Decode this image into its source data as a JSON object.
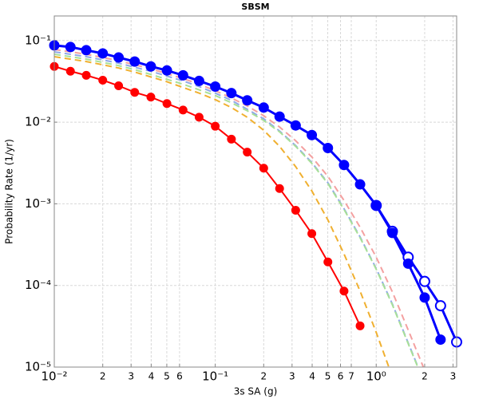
{
  "chart_data": {
    "type": "line",
    "title": "SBSM",
    "xlabel": "3s SA (g)",
    "ylabel": "Probability Rate (1/yr)",
    "xscale": "log",
    "yscale": "log",
    "grid": true,
    "xlim": [
      0.01,
      3.16
    ],
    "ylim": [
      1e-05,
      0.2
    ],
    "xticks": [
      {
        "value": 0.01,
        "label": "10⁻²"
      },
      {
        "value": 0.02,
        "label": "2"
      },
      {
        "value": 0.03,
        "label": "3"
      },
      {
        "value": 0.04,
        "label": "4"
      },
      {
        "value": 0.05,
        "label": "5"
      },
      {
        "value": 0.06,
        "label": "6"
      },
      {
        "value": 0.1,
        "label": "10⁻¹"
      },
      {
        "value": 0.2,
        "label": "2"
      },
      {
        "value": 0.3,
        "label": "3"
      },
      {
        "value": 0.4,
        "label": "4"
      },
      {
        "value": 0.5,
        "label": "5"
      },
      {
        "value": 0.6,
        "label": "6"
      },
      {
        "value": 0.7,
        "label": "7"
      },
      {
        "value": 1,
        "label": "10⁰"
      },
      {
        "value": 2,
        "label": "2"
      },
      {
        "value": 3,
        "label": "3"
      }
    ],
    "yticks": [
      {
        "value": 0.1,
        "label": "10⁻¹"
      },
      {
        "value": 0.01,
        "label": "10⁻²"
      },
      {
        "value": 0.001,
        "label": "10⁻³"
      },
      {
        "value": 0.0001,
        "label": "10⁻⁴"
      },
      {
        "value": 1e-05,
        "label": "10⁻⁵"
      }
    ],
    "series": [
      {
        "color": "#f4a0a0",
        "dashed": true,
        "x": [
          0.01,
          0.0126,
          0.0158,
          0.02,
          0.0251,
          0.0316,
          0.0398,
          0.0501,
          0.0631,
          0.0794,
          0.1,
          0.126,
          0.158,
          0.2,
          0.251,
          0.316,
          0.398,
          0.501,
          0.631,
          0.794,
          1,
          1.26,
          1.58,
          2
        ],
        "values": [
          0.0778,
          0.0727,
          0.0679,
          0.062,
          0.0566,
          0.0505,
          0.045,
          0.0393,
          0.0342,
          0.0292,
          0.0243,
          0.0198,
          0.0158,
          0.012,
          0.00872,
          0.00592,
          0.00375,
          0.00217,
          0.0011,
          0.000516,
          0.000222,
          8.33e-05,
          2.85e-05,
          9.12e-06
        ]
      },
      {
        "color": "#90a8e8",
        "dashed": true,
        "x": [
          0.01,
          0.0126,
          0.0158,
          0.02,
          0.0251,
          0.0316,
          0.0398,
          0.0501,
          0.0631,
          0.0794,
          0.1,
          0.126,
          0.158,
          0.2,
          0.251,
          0.316,
          0.398,
          0.501,
          0.631,
          0.794,
          1,
          1.26,
          1.58,
          2
        ],
        "values": [
          0.0727,
          0.0679,
          0.0634,
          0.0579,
          0.0528,
          0.0471,
          0.042,
          0.0367,
          0.032,
          0.0273,
          0.0227,
          0.0185,
          0.0144,
          0.011,
          0.00778,
          0.00516,
          0.0032,
          0.00181,
          0.000872,
          0.000393,
          0.000161,
          5.92e-05,
          1.98e-05,
          6.34e-06
        ]
      },
      {
        "color": "#a8e098",
        "dashed": true,
        "x": [
          0.01,
          0.0126,
          0.0158,
          0.02,
          0.0251,
          0.0316,
          0.0398,
          0.0501,
          0.0631,
          0.0794,
          0.1,
          0.126,
          0.158,
          0.2,
          0.251,
          0.316,
          0.398,
          0.501,
          0.631,
          0.794,
          1,
          1.26,
          1.58,
          2
        ],
        "values": [
          0.0679,
          0.0634,
          0.0592,
          0.054,
          0.0493,
          0.044,
          0.0384,
          0.0335,
          0.0292,
          0.0249,
          0.0212,
          0.0173,
          0.0138,
          0.0105,
          0.00761,
          0.00505,
          0.00313,
          0.00177,
          0.000852,
          0.000384,
          0.000158,
          5.79e-05,
          1.94e-05,
          6.2e-06
        ]
      },
      {
        "color": "#f0b030",
        "dashed": true,
        "x": [
          0.01,
          0.0126,
          0.0158,
          0.02,
          0.0251,
          0.0316,
          0.0398,
          0.0501,
          0.0631,
          0.0794,
          0.1,
          0.126,
          0.158,
          0.2,
          0.251,
          0.316,
          0.398,
          0.501,
          0.631,
          0.794,
          1,
          1.26
        ],
        "values": [
          0.0634,
          0.0592,
          0.0553,
          0.0505,
          0.0461,
          0.0411,
          0.0358,
          0.0313,
          0.0266,
          0.0227,
          0.0189,
          0.0151,
          0.0115,
          0.00796,
          0.00505,
          0.00285,
          0.00144,
          0.000634,
          0.000243,
          8.52e-05,
          2.66e-05,
          7.61e-06
        ]
      },
      {
        "color": "#ff0000",
        "marker": "filled",
        "x": [
          0.01,
          0.0126,
          0.0158,
          0.02,
          0.0251,
          0.0316,
          0.0398,
          0.0501,
          0.0631,
          0.0794,
          0.1,
          0.126,
          0.158,
          0.2,
          0.251,
          0.316,
          0.398,
          0.501,
          0.631,
          0.794
        ],
        "values": [
          0.0482,
          0.0421,
          0.0375,
          0.0327,
          0.0279,
          0.0232,
          0.0203,
          0.0169,
          0.0141,
          0.0115,
          0.00892,
          0.00619,
          0.0043,
          0.00273,
          0.00154,
          0.000834,
          0.000431,
          0.000194,
          8.53e-05,
          3.2e-05
        ]
      },
      {
        "color": "#0000ff",
        "marker": "open",
        "x": [
          1,
          1.26,
          1.58,
          2,
          2.51,
          3.16
        ],
        "values": [
          0.000955,
          0.00046,
          0.000222,
          0.000112,
          5.65e-05,
          2.03e-05
        ]
      },
      {
        "color": "#0000ff",
        "marker": "filled",
        "x": [
          0.01,
          0.0126,
          0.0158,
          0.02,
          0.0251,
          0.0316,
          0.0398,
          0.0501,
          0.0631,
          0.0794,
          0.1,
          0.126,
          0.158,
          0.2,
          0.251,
          0.316,
          0.398,
          0.501,
          0.631,
          0.794,
          1,
          1.26,
          1.58,
          2,
          2.51
        ],
        "values": [
          0.0872,
          0.0833,
          0.0761,
          0.0695,
          0.062,
          0.0553,
          0.0482,
          0.043,
          0.0375,
          0.032,
          0.0273,
          0.0227,
          0.0185,
          0.0151,
          0.0117,
          0.00912,
          0.00695,
          0.00482,
          0.00299,
          0.00173,
          0.000955,
          0.00044,
          0.000185,
          7.1e-05,
          2.17e-05
        ]
      }
    ]
  }
}
